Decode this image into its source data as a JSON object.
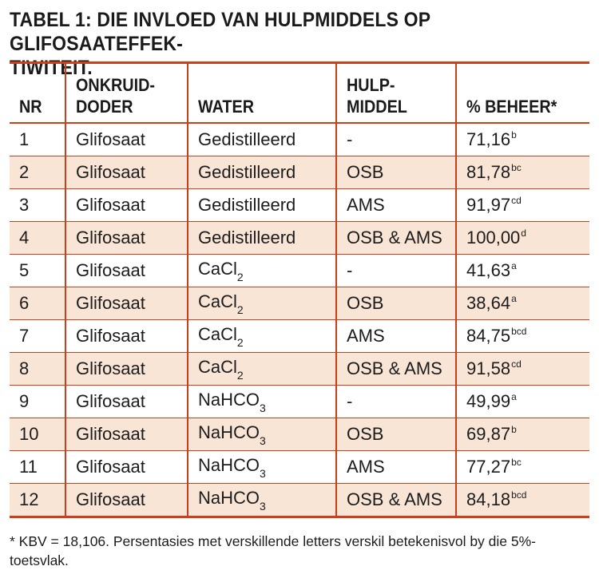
{
  "title": {
    "line1": "TABEL 1: DIE INVLOED VAN HULPMIDDELS OP GLIFOSAATEFFEK-",
    "line2": "TIWITEIT."
  },
  "header": {
    "nr": "NR",
    "onkruid1": "ONKRUID-",
    "onkruid2": "DODER",
    "water": "WATER",
    "hulp1": "HULP-",
    "hulp2": "MIDDEL",
    "beheer": "% BEHEER*"
  },
  "rows": [
    {
      "nr": "1",
      "doder": "Glifosaat",
      "water": "Gedistilleerd",
      "water_sub": "",
      "middel": "-",
      "beheer": "71,16",
      "letters": "b"
    },
    {
      "nr": "2",
      "doder": "Glifosaat",
      "water": "Gedistilleerd",
      "water_sub": "",
      "middel": "OSB",
      "beheer": "81,78",
      "letters": "bc"
    },
    {
      "nr": "3",
      "doder": "Glifosaat",
      "water": "Gedistilleerd",
      "water_sub": "",
      "middel": "AMS",
      "beheer": "91,97",
      "letters": "cd"
    },
    {
      "nr": "4",
      "doder": "Glifosaat",
      "water": "Gedistilleerd",
      "water_sub": "",
      "middel": "OSB & AMS",
      "beheer": "100,00",
      "letters": "d"
    },
    {
      "nr": "5",
      "doder": "Glifosaat",
      "water": "CaCl",
      "water_sub": "2",
      "middel": "-",
      "beheer": "41,63",
      "letters": "a"
    },
    {
      "nr": "6",
      "doder": "Glifosaat",
      "water": "CaCl",
      "water_sub": "2",
      "middel": "OSB",
      "beheer": "38,64",
      "letters": "a"
    },
    {
      "nr": "7",
      "doder": "Glifosaat",
      "water": "CaCl",
      "water_sub": "2",
      "middel": "AMS",
      "beheer": "84,75",
      "letters": "bcd"
    },
    {
      "nr": "8",
      "doder": "Glifosaat",
      "water": "CaCl",
      "water_sub": "2",
      "middel": "OSB & AMS",
      "beheer": "91,58",
      "letters": "cd"
    },
    {
      "nr": "9",
      "doder": "Glifosaat",
      "water": "NaHCO",
      "water_sub": "3",
      "middel": "-",
      "beheer": "49,99",
      "letters": "a"
    },
    {
      "nr": "10",
      "doder": "Glifosaat",
      "water": "NaHCO",
      "water_sub": "3",
      "middel": "OSB",
      "beheer": "69,87",
      "letters": "b"
    },
    {
      "nr": "11",
      "doder": "Glifosaat",
      "water": "NaHCO",
      "water_sub": "3",
      "middel": "AMS",
      "beheer": "77,27",
      "letters": "bc"
    },
    {
      "nr": "12",
      "doder": "Glifosaat",
      "water": "NaHCO",
      "water_sub": "3",
      "middel": "OSB & AMS",
      "beheer": "84,18",
      "letters": "bcd"
    }
  ],
  "footnote": "* KBV = 18,106. Persentasies met verskillende letters verskil betekenisvol by die 5%-toetsvlak.",
  "colors": {
    "accent": "#c8411b",
    "stripe": "#f9e5d6"
  }
}
